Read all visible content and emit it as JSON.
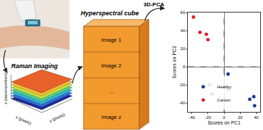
{
  "raman": {
    "label": "Raman Imaging",
    "axes": {
      "x": "x (pixels)",
      "y": "y (pixels)",
      "z": "z (wavenumbers)"
    }
  },
  "cube": {
    "title": "Hyperspectral cube",
    "images": [
      "Image 1",
      "Image 2",
      "...",
      "Image z"
    ]
  },
  "arrow_label": "3D-PCA",
  "chart_data": {
    "type": "scatter",
    "xlabel": "Scores on PC1",
    "ylabel": "Scores on PC2",
    "xlim": [
      -45,
      45
    ],
    "xticks": [
      -40,
      -20,
      0,
      20,
      40
    ],
    "ylim": [
      -50,
      60
    ],
    "yticks": [
      -40,
      -20,
      0,
      20,
      40,
      60
    ],
    "legend": "lower left",
    "grid": false,
    "series": [
      {
        "name": "Healthy",
        "color": "#1f3a93",
        "marker": "circle",
        "x": [
          5,
          5,
          32,
          37,
          38
        ],
        "y": [
          -8,
          -25,
          -36,
          -33,
          -43
        ]
      },
      {
        "name": "Cancer",
        "color": "#e0202a",
        "marker": "circle",
        "x": [
          -38,
          -30,
          -22,
          -20,
          -18,
          -15
        ],
        "y": [
          55,
          38,
          36,
          30,
          -20,
          -30
        ]
      }
    ]
  }
}
